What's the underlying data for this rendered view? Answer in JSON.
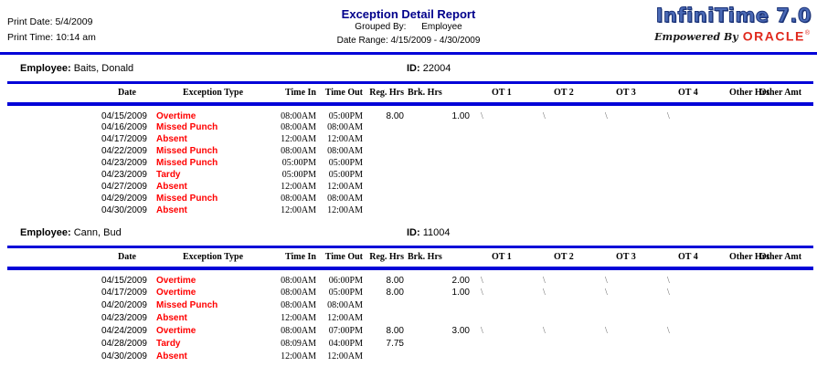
{
  "page": {
    "print_date_label": "Print Date:",
    "print_date": "5/4/2009",
    "print_time_label": "Print Time:",
    "print_time": "10:14 am",
    "title": "Exception Detail Report",
    "grouped_by_label": "Grouped By:",
    "grouped_by_value": "Employee",
    "date_range_label": "Date Range:",
    "date_range_value": "4/15/2009 - 4/30/2009",
    "logo": {
      "brand": "InfiniTime 7.0",
      "tagline": "Empowered By",
      "oracle": "ORACLE",
      "reg": "®"
    }
  },
  "colors": {
    "rule_blue": "#0202d8",
    "title_navy": "#00008B",
    "exception_red": "#ff0000",
    "oracle_red": "#e0291d",
    "brand_blue": "#4a69b5"
  },
  "columns": [
    "Date",
    "Exception Type",
    "Time In",
    "Time Out",
    "Reg. Hrs",
    "Brk. Hrs",
    "OT 1",
    "OT 2",
    "OT 3",
    "OT 4",
    "Other Hrs",
    "Other Amt"
  ],
  "employees": [
    {
      "label": "Employee:",
      "name": "Baits, Donald",
      "id_label": "ID:",
      "id": "22004",
      "rows": [
        {
          "date": "04/15/2009",
          "exception": "Overtime",
          "time_in": "08:00AM",
          "time_out": "05:00PM",
          "reg_hrs": "8.00",
          "brk_hrs": "",
          "ot1": "1.00",
          "ot1_sl": "\\",
          "ot2": "",
          "ot2_sl": "\\",
          "ot3": "",
          "ot3_sl": "\\",
          "ot4": "",
          "ot4_sl": "\\",
          "other_hrs": "",
          "other_amt": ""
        },
        {
          "date": "04/16/2009",
          "exception": "Missed Punch",
          "time_in": "08:00AM",
          "time_out": "08:00AM",
          "reg_hrs": "",
          "brk_hrs": "",
          "ot1": "",
          "ot1_sl": "",
          "ot2": "",
          "ot2_sl": "",
          "ot3": "",
          "ot3_sl": "",
          "ot4": "",
          "ot4_sl": "",
          "other_hrs": "",
          "other_amt": ""
        },
        {
          "date": "04/17/2009",
          "exception": "Absent",
          "time_in": "12:00AM",
          "time_out": "12:00AM",
          "reg_hrs": "",
          "brk_hrs": "",
          "ot1": "",
          "ot1_sl": "",
          "ot2": "",
          "ot2_sl": "",
          "ot3": "",
          "ot3_sl": "",
          "ot4": "",
          "ot4_sl": "",
          "other_hrs": "",
          "other_amt": ""
        },
        {
          "date": "04/22/2009",
          "exception": "Missed Punch",
          "time_in": "08:00AM",
          "time_out": "08:00AM",
          "reg_hrs": "",
          "brk_hrs": "",
          "ot1": "",
          "ot1_sl": "",
          "ot2": "",
          "ot2_sl": "",
          "ot3": "",
          "ot3_sl": "",
          "ot4": "",
          "ot4_sl": "",
          "other_hrs": "",
          "other_amt": ""
        },
        {
          "date": "04/23/2009",
          "exception": "Missed Punch",
          "time_in": "05:00PM",
          "time_out": "05:00PM",
          "reg_hrs": "",
          "brk_hrs": "",
          "ot1": "",
          "ot1_sl": "",
          "ot2": "",
          "ot2_sl": "",
          "ot3": "",
          "ot3_sl": "",
          "ot4": "",
          "ot4_sl": "",
          "other_hrs": "",
          "other_amt": ""
        },
        {
          "date": "04/23/2009",
          "exception": "Tardy",
          "time_in": "05:00PM",
          "time_out": "05:00PM",
          "reg_hrs": "",
          "brk_hrs": "",
          "ot1": "",
          "ot1_sl": "",
          "ot2": "",
          "ot2_sl": "",
          "ot3": "",
          "ot3_sl": "",
          "ot4": "",
          "ot4_sl": "",
          "other_hrs": "",
          "other_amt": ""
        },
        {
          "date": "04/27/2009",
          "exception": "Absent",
          "time_in": "12:00AM",
          "time_out": "12:00AM",
          "reg_hrs": "",
          "brk_hrs": "",
          "ot1": "",
          "ot1_sl": "",
          "ot2": "",
          "ot2_sl": "",
          "ot3": "",
          "ot3_sl": "",
          "ot4": "",
          "ot4_sl": "",
          "other_hrs": "",
          "other_amt": ""
        },
        {
          "date": "04/29/2009",
          "exception": "Missed Punch",
          "time_in": "08:00AM",
          "time_out": "08:00AM",
          "reg_hrs": "",
          "brk_hrs": "",
          "ot1": "",
          "ot1_sl": "",
          "ot2": "",
          "ot2_sl": "",
          "ot3": "",
          "ot3_sl": "",
          "ot4": "",
          "ot4_sl": "",
          "other_hrs": "",
          "other_amt": ""
        },
        {
          "date": "04/30/2009",
          "exception": "Absent",
          "time_in": "12:00AM",
          "time_out": "12:00AM",
          "reg_hrs": "",
          "brk_hrs": "",
          "ot1": "",
          "ot1_sl": "",
          "ot2": "",
          "ot2_sl": "",
          "ot3": "",
          "ot3_sl": "",
          "ot4": "",
          "ot4_sl": "",
          "other_hrs": "",
          "other_amt": ""
        }
      ]
    },
    {
      "label": "Employee:",
      "name": "Cann, Bud",
      "id_label": "ID:",
      "id": "11004",
      "rows": [
        {
          "date": "04/15/2009",
          "exception": "Overtime",
          "time_in": "08:00AM",
          "time_out": "06:00PM",
          "reg_hrs": "8.00",
          "brk_hrs": "",
          "ot1": "2.00",
          "ot1_sl": "\\",
          "ot2": "",
          "ot2_sl": "\\",
          "ot3": "",
          "ot3_sl": "\\",
          "ot4": "",
          "ot4_sl": "\\",
          "other_hrs": "",
          "other_amt": ""
        },
        {
          "date": "04/17/2009",
          "exception": "Overtime",
          "time_in": "08:00AM",
          "time_out": "05:00PM",
          "reg_hrs": "8.00",
          "brk_hrs": "",
          "ot1": "1.00",
          "ot1_sl": "\\",
          "ot2": "",
          "ot2_sl": "\\",
          "ot3": "",
          "ot3_sl": "\\",
          "ot4": "",
          "ot4_sl": "\\",
          "other_hrs": "",
          "other_amt": ""
        },
        {
          "date": "04/20/2009",
          "exception": "Missed Punch",
          "time_in": "08:00AM",
          "time_out": "08:00AM",
          "reg_hrs": "",
          "brk_hrs": "",
          "ot1": "",
          "ot1_sl": "",
          "ot2": "",
          "ot2_sl": "",
          "ot3": "",
          "ot3_sl": "",
          "ot4": "",
          "ot4_sl": "",
          "other_hrs": "",
          "other_amt": ""
        },
        {
          "date": "04/23/2009",
          "exception": "Absent",
          "time_in": "12:00AM",
          "time_out": "12:00AM",
          "reg_hrs": "",
          "brk_hrs": "",
          "ot1": "",
          "ot1_sl": "",
          "ot2": "",
          "ot2_sl": "",
          "ot3": "",
          "ot3_sl": "",
          "ot4": "",
          "ot4_sl": "",
          "other_hrs": "",
          "other_amt": ""
        },
        {
          "date": "04/24/2009",
          "exception": "Overtime",
          "time_in": "08:00AM",
          "time_out": "07:00PM",
          "reg_hrs": "8.00",
          "brk_hrs": "",
          "ot1": "3.00",
          "ot1_sl": "\\",
          "ot2": "",
          "ot2_sl": "\\",
          "ot3": "",
          "ot3_sl": "\\",
          "ot4": "",
          "ot4_sl": "\\",
          "other_hrs": "",
          "other_amt": ""
        },
        {
          "date": "04/28/2009",
          "exception": "Tardy",
          "time_in": "08:09AM",
          "time_out": "04:00PM",
          "reg_hrs": "7.75",
          "brk_hrs": "",
          "ot1": "",
          "ot1_sl": "",
          "ot2": "",
          "ot2_sl": "",
          "ot3": "",
          "ot3_sl": "",
          "ot4": "",
          "ot4_sl": "",
          "other_hrs": "",
          "other_amt": ""
        },
        {
          "date": "04/30/2009",
          "exception": "Absent",
          "time_in": "12:00AM",
          "time_out": "12:00AM",
          "reg_hrs": "",
          "brk_hrs": "",
          "ot1": "",
          "ot1_sl": "",
          "ot2": "",
          "ot2_sl": "",
          "ot3": "",
          "ot3_sl": "",
          "ot4": "",
          "ot4_sl": "",
          "other_hrs": "",
          "other_amt": ""
        }
      ]
    }
  ]
}
